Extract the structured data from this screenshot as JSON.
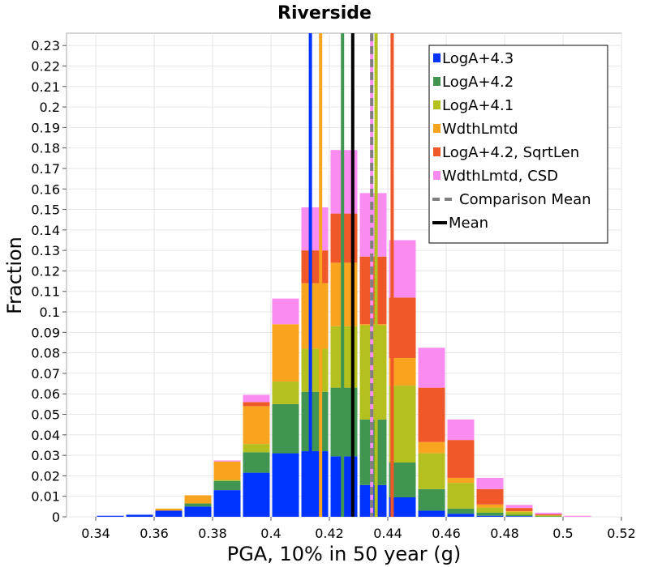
{
  "chart_data": {
    "type": "bar",
    "stacked": true,
    "title": "Riverside",
    "xlabel": "PGA, 10% in 50 year (g)",
    "ylabel": "Fraction",
    "xlim": [
      0.33,
      0.52
    ],
    "ylim": [
      0,
      0.236
    ],
    "grid": true,
    "legend_position": "top-right",
    "x_ticks": [
      "0.34",
      "0.36",
      "0.38",
      "0.4",
      "0.42",
      "0.44",
      "0.46",
      "0.48",
      "0.5",
      "0.52"
    ],
    "x_tick_values": [
      0.34,
      0.36,
      0.38,
      0.4,
      0.42,
      0.44,
      0.46,
      0.48,
      0.5,
      0.52
    ],
    "y_ticks": [
      "0",
      "0.01",
      "0.02",
      "0.03",
      "0.04",
      "0.05",
      "0.06",
      "0.07",
      "0.08",
      "0.09",
      "0.1",
      "0.11",
      "0.12",
      "0.13",
      "0.14",
      "0.15",
      "0.16",
      "0.17",
      "0.18",
      "0.19",
      "0.2",
      "0.21",
      "0.22",
      "0.23"
    ],
    "y_tick_values": [
      0,
      0.01,
      0.02,
      0.03,
      0.04,
      0.05,
      0.06,
      0.07,
      0.08,
      0.09,
      0.1,
      0.11,
      0.12,
      0.13,
      0.14,
      0.15,
      0.16,
      0.17,
      0.18,
      0.19,
      0.2,
      0.21,
      0.22,
      0.23
    ],
    "bin_width": 0.01,
    "bin_centers": [
      0.345,
      0.355,
      0.365,
      0.375,
      0.385,
      0.395,
      0.405,
      0.415,
      0.425,
      0.435,
      0.445,
      0.455,
      0.465,
      0.475,
      0.485,
      0.495,
      0.505
    ],
    "series": [
      {
        "name": "LogA+4.3",
        "color": "#0033ff",
        "values": [
          0.0005,
          0.001,
          0.003,
          0.005,
          0.013,
          0.0215,
          0.031,
          0.032,
          0.0295,
          0.0155,
          0.0095,
          0.003,
          0.0015,
          0.0005,
          0.0003,
          0,
          0
        ]
      },
      {
        "name": "LogA+4.2",
        "color": "#409650",
        "values": [
          0,
          0,
          0,
          0.0015,
          0.0045,
          0.01,
          0.024,
          0.029,
          0.0335,
          0.032,
          0.017,
          0.0105,
          0.0025,
          0.0015,
          0.0007,
          0.0002,
          0
        ]
      },
      {
        "name": "LogA+4.1",
        "color": "#b4c01e",
        "values": [
          0,
          0,
          0,
          0,
          0.0005,
          0.004,
          0.011,
          0.021,
          0.03,
          0.046,
          0.0375,
          0.0175,
          0.0125,
          0.0025,
          0.0015,
          0.0005,
          0
        ]
      },
      {
        "name": "WdthLmtd",
        "color": "#f8a41e",
        "values": [
          0,
          0,
          0.001,
          0.004,
          0.009,
          0.0185,
          0.028,
          0.032,
          0.031,
          0.0005,
          0.0135,
          0.0055,
          0.0025,
          0.0015,
          0.0003,
          0,
          0
        ]
      },
      {
        "name": "LogA+4.2, SqrtLen",
        "color": "#f0582a",
        "values": [
          0,
          0,
          0,
          0,
          0,
          0.002,
          0.0,
          0.016,
          0.024,
          0.033,
          0.0295,
          0.0265,
          0.0185,
          0.0075,
          0.0015,
          0.0005,
          0
        ]
      },
      {
        "name": "WdthLmtd, CSD",
        "color": "#fa8cf0",
        "values": [
          0,
          0,
          0,
          0,
          0.0005,
          0.0035,
          0.0125,
          0.021,
          0.031,
          0.031,
          0.028,
          0.0195,
          0.01,
          0.0055,
          0.0015,
          0.0008,
          0.0005
        ]
      }
    ],
    "vertical_lines": [
      {
        "name": "LogA+4.3",
        "x": 0.4135,
        "color": "#0033ff",
        "style": "solid",
        "in_legend": false
      },
      {
        "name": "WdthLmtd",
        "x": 0.417,
        "color": "#f8a41e",
        "style": "solid",
        "in_legend": false
      },
      {
        "name": "LogA+4.2",
        "x": 0.4245,
        "color": "#409650",
        "style": "solid",
        "in_legend": false
      },
      {
        "name": "WdthLmtd, CSD",
        "x": 0.4345,
        "color": "#fa8cf0",
        "style": "solid",
        "in_legend": false
      },
      {
        "name": "LogA+4.1",
        "x": 0.436,
        "color": "#b4c01e",
        "style": "solid",
        "in_legend": false
      },
      {
        "name": "LogA+4.2, SqrtLen",
        "x": 0.4415,
        "color": "#f0582a",
        "style": "solid",
        "in_legend": false
      },
      {
        "name": "Comparison Mean",
        "x": 0.4345,
        "color": "#808080",
        "style": "dashed",
        "in_legend": true
      },
      {
        "name": "Mean",
        "x": 0.428,
        "color": "#000000",
        "style": "solid",
        "in_legend": true
      }
    ]
  }
}
